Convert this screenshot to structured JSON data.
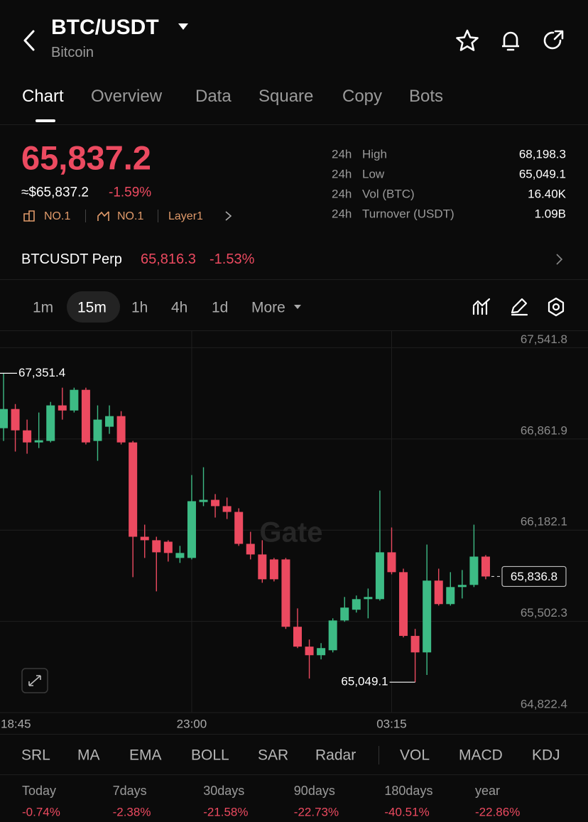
{
  "header": {
    "title": "BTC/USDT",
    "subtitle": "Bitcoin"
  },
  "tabs": [
    "Chart",
    "Overview",
    "Data",
    "Square",
    "Copy",
    "Bots"
  ],
  "ticker": {
    "price": "65,837.2",
    "fiat_price": "≈$65,837.2",
    "change": "-1.59%",
    "badges": [
      "NO.1",
      "NO.1",
      "Layer1"
    ],
    "stats": [
      {
        "period": "24h",
        "label": "High",
        "value": "68,198.3"
      },
      {
        "period": "24h",
        "label": "Low",
        "value": "65,049.1"
      },
      {
        "period": "24h",
        "label": "Vol (BTC)",
        "value": "16.40K"
      },
      {
        "period": "24h",
        "label": "Turnover (USDT)",
        "value": "1.09B"
      }
    ]
  },
  "perp": {
    "name": "BTCUSDT Perp",
    "price": "65,816.3",
    "change": "-1.53%"
  },
  "intervals": [
    "1m",
    "15m",
    "1h",
    "4h",
    "1d",
    "More"
  ],
  "chart_data": {
    "type": "candlestick",
    "watermark": "Gate",
    "up_color": "#3dbb85",
    "down_color": "#ec4a60",
    "categories": [
      "18:45",
      null,
      null,
      null,
      null,
      null,
      null,
      null,
      null,
      null,
      null,
      null,
      null,
      null,
      null,
      null,
      "23:00",
      null,
      null,
      null,
      null,
      null,
      null,
      null,
      null,
      null,
      null,
      null,
      null,
      null,
      null,
      null,
      null,
      "03:15",
      null,
      null,
      null,
      null,
      null,
      null,
      null,
      null
    ],
    "open": [
      66942,
      67085,
      66926,
      66836,
      66847,
      67112,
      67074,
      67228,
      66847,
      66953,
      67032,
      66836,
      66133,
      66107,
      66096,
      65975,
      65975,
      66392,
      66408,
      66361,
      66318,
      66080,
      66001,
      65964,
      65964,
      65462,
      65314,
      65250,
      65287,
      65509,
      65589,
      65668,
      65668,
      66017,
      65869,
      65394,
      65271,
      65806,
      65631,
      65758,
      65774,
      65985
    ],
    "high": [
      67351.4,
      67122,
      67006,
      67059,
      67138,
      67244,
      67244,
      67244,
      67112,
      67112,
      67069,
      66847,
      66223,
      66133,
      66107,
      66065,
      66593,
      66651,
      66451,
      66425,
      66345,
      66170,
      66107,
      65975,
      65975,
      65599,
      65367,
      65340,
      65525,
      65684,
      65695,
      65747,
      66477,
      66202,
      65895,
      65446,
      66075,
      65895,
      65869,
      65885,
      66223,
      65996
    ],
    "low": [
      66847,
      66768,
      66752,
      66794,
      66836,
      67006,
      67059,
      66821,
      66699,
      66900,
      66821,
      65832,
      65975,
      65726,
      65948,
      65938,
      65964,
      66361,
      66276,
      66265,
      66065,
      65964,
      65790,
      65800,
      65446,
      65303,
      65076,
      65219,
      65271,
      65499,
      65568,
      65525,
      65657,
      65853,
      65383,
      65049.1,
      65103,
      65620,
      65620,
      65673,
      65758,
      65816
    ],
    "close": [
      67085,
      66926,
      66836,
      66852,
      67112,
      67074,
      67228,
      66836,
      67006,
      67032,
      66836,
      66133,
      66107,
      66017,
      66012,
      66012,
      66398,
      66408,
      66361,
      66318,
      66080,
      66001,
      65816,
      65816,
      65462,
      65314,
      65250,
      65303,
      65509,
      65605,
      65668,
      65684,
      66017,
      65869,
      65394,
      65271,
      65806,
      65631,
      65758,
      65774,
      65985,
      65836.8
    ],
    "ylim": [
      64822.4,
      67650
    ],
    "yticks": [
      {
        "value": 67541.8,
        "label": "67,541.8"
      },
      {
        "value": 66861.9,
        "label": "66,861.9"
      },
      {
        "value": 66182.1,
        "label": "66,182.1"
      },
      {
        "value": 65502.3,
        "label": "65,502.3"
      },
      {
        "value": 64822.4,
        "label": "64,822.4"
      }
    ],
    "grid": true,
    "high_marker": {
      "value": 67351.4,
      "label": "67,351.4"
    },
    "low_marker": {
      "value": 65049.1,
      "label": "65,049.1"
    },
    "last_price": {
      "value": 65836.8,
      "label": "65,836.8"
    }
  },
  "indicators": [
    "SRL",
    "MA",
    "EMA",
    "BOLL",
    "SAR",
    "Radar",
    "VOL",
    "MACD",
    "KDJ"
  ],
  "performance": [
    {
      "label": "Today",
      "value": "-0.74%"
    },
    {
      "label": "7days",
      "value": "-2.38%"
    },
    {
      "label": "30days",
      "value": "-21.58%"
    },
    {
      "label": "90days",
      "value": "-22.73%"
    },
    {
      "label": "180days",
      "value": "-40.51%"
    },
    {
      "label": "year",
      "value": "-22.86%"
    }
  ]
}
